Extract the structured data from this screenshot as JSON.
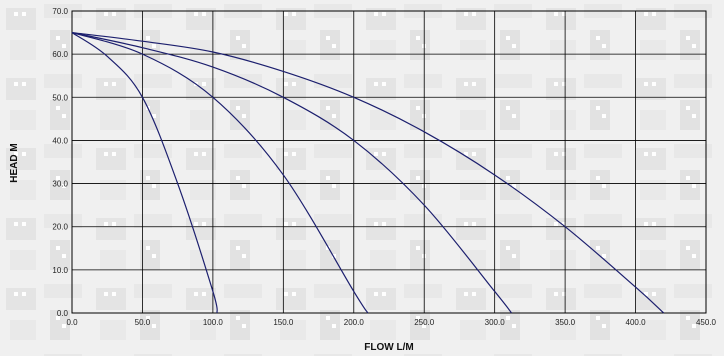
{
  "chart_data": {
    "type": "line",
    "title": "",
    "xlabel": "FLOW L/M",
    "ylabel": "HEAD M",
    "xlim": [
      0,
      450
    ],
    "ylim": [
      0,
      70
    ],
    "x_ticks": [
      "0.0",
      "50.0",
      "100.0",
      "150.0",
      "200.0",
      "250.0",
      "300.0",
      "350.0",
      "400.0",
      "450.0"
    ],
    "y_ticks": [
      "0.0",
      "10.0",
      "20.0",
      "30.0",
      "40.0",
      "50.0",
      "60.0",
      "70.0"
    ],
    "grid": true,
    "legend": "none",
    "line_color": "#1c1f6e",
    "grid_color": "#000000",
    "series": [
      {
        "x": [
          0,
          25,
          50,
          75,
          100,
          103
        ],
        "y": [
          65,
          59.5,
          50,
          30,
          5,
          0
        ]
      },
      {
        "x": [
          0,
          50,
          100,
          150,
          200,
          210
        ],
        "y": [
          65,
          60,
          50,
          32,
          5,
          0
        ]
      },
      {
        "x": [
          0,
          50,
          100,
          150,
          200,
          250,
          300,
          312
        ],
        "y": [
          65,
          61.5,
          57,
          50,
          40,
          25,
          5,
          0
        ]
      },
      {
        "x": [
          0,
          50,
          100,
          150,
          200,
          250,
          300,
          350,
          400,
          420
        ],
        "y": [
          65,
          63,
          60.5,
          56,
          50,
          42,
          32,
          20,
          6,
          0
        ]
      }
    ]
  }
}
